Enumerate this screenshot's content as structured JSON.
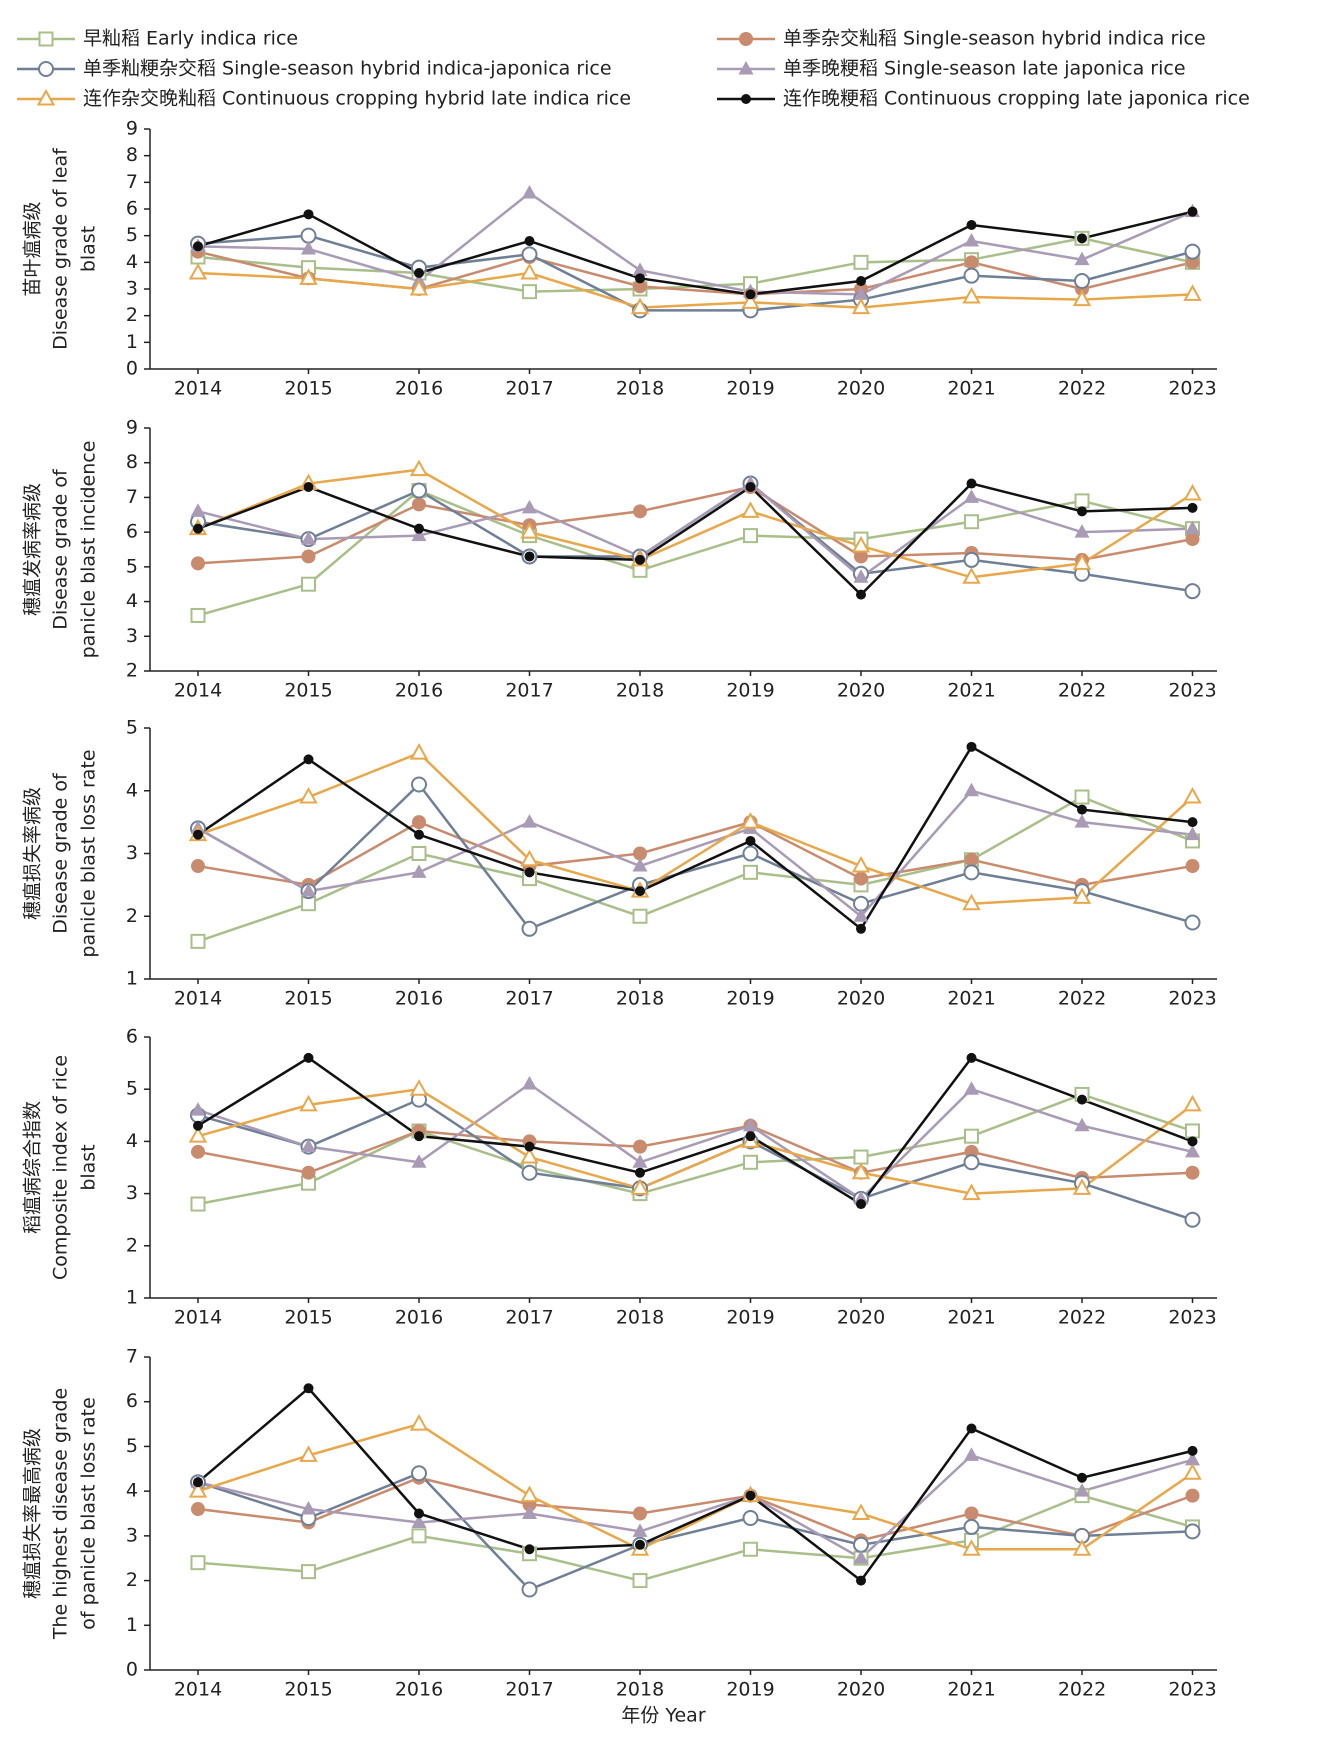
{
  "chart_data": [
    {
      "type": "line",
      "ylabel": [
        "苗叶瘟病级",
        "Disease grade of leaf",
        "blast"
      ],
      "legend": "top",
      "categories": [
        "2014",
        "2015",
        "2016",
        "2017",
        "2018",
        "2019",
        "2020",
        "2021",
        "2022",
        "2023"
      ],
      "ylim": [
        0,
        9
      ],
      "yticks": [
        0,
        1,
        2,
        3,
        4,
        5,
        6,
        7,
        8,
        9
      ],
      "series": [
        {
          "name": "早籼稻 Early indica rice",
          "color": "#a8bf8a",
          "marker": "square-open",
          "values": [
            4.2,
            3.8,
            3.6,
            2.9,
            3.0,
            3.2,
            4.0,
            4.1,
            4.9,
            4.0
          ]
        },
        {
          "name": "单季杂交籼稻 Single-season hybrid indica rice",
          "color": "#c98b6e",
          "marker": "circle-filled",
          "values": [
            4.4,
            3.4,
            3.0,
            4.2,
            3.1,
            2.8,
            3.0,
            4.0,
            3.0,
            4.0
          ]
        },
        {
          "name": "单季籼粳杂交稻 Single-season hybrid indica-japonica rice",
          "color": "#6f7f96",
          "marker": "circle-open",
          "values": [
            4.7,
            5.0,
            3.8,
            4.3,
            2.2,
            2.2,
            2.6,
            3.5,
            3.3,
            4.4
          ]
        },
        {
          "name": "单季晚粳稻 Single-season late japonica rice",
          "color": "#a99ab5",
          "marker": "triangle-filled",
          "values": [
            4.6,
            4.5,
            3.3,
            6.6,
            3.7,
            2.9,
            2.8,
            4.8,
            4.1,
            5.9
          ]
        },
        {
          "name": "连作杂交晚籼稻 Continuous cropping hybrid late indica rice",
          "color": "#e8a74a",
          "marker": "triangle-open",
          "values": [
            3.6,
            3.4,
            3.0,
            3.6,
            2.3,
            2.5,
            2.3,
            2.7,
            2.6,
            2.8
          ]
        },
        {
          "name": "连作晚粳稻 Continuous cropping late japonica rice",
          "color": "#111111",
          "marker": "dot",
          "values": [
            4.6,
            5.8,
            3.6,
            4.8,
            3.4,
            2.8,
            3.3,
            5.4,
            4.9,
            5.9
          ]
        }
      ]
    },
    {
      "type": "line",
      "ylabel": [
        "穗瘟发病率病级",
        "Disease grade of",
        "panicle blast incidence"
      ],
      "categories": [
        "2014",
        "2015",
        "2016",
        "2017",
        "2018",
        "2019",
        "2020",
        "2021",
        "2022",
        "2023"
      ],
      "ylim": [
        2,
        9
      ],
      "yticks": [
        2,
        3,
        4,
        5,
        6,
        7,
        8,
        9
      ],
      "series": [
        {
          "color": "#a8bf8a",
          "marker": "square-open",
          "values": [
            3.6,
            4.5,
            7.2,
            5.9,
            4.9,
            5.9,
            5.8,
            6.3,
            6.9,
            6.1
          ]
        },
        {
          "color": "#c98b6e",
          "marker": "circle-filled",
          "values": [
            5.1,
            5.3,
            6.8,
            6.2,
            6.6,
            7.3,
            5.3,
            5.4,
            5.2,
            5.8
          ]
        },
        {
          "color": "#6f7f96",
          "marker": "circle-open",
          "values": [
            6.3,
            5.8,
            7.2,
            5.3,
            5.3,
            7.4,
            4.8,
            5.2,
            4.8,
            4.3
          ]
        },
        {
          "color": "#a99ab5",
          "marker": "triangle-filled",
          "values": [
            6.6,
            5.8,
            5.9,
            6.7,
            5.3,
            7.4,
            4.7,
            7.0,
            6.0,
            6.1
          ]
        },
        {
          "color": "#e8a74a",
          "marker": "triangle-open",
          "values": [
            6.1,
            7.4,
            7.8,
            6.0,
            5.2,
            6.6,
            5.6,
            4.7,
            5.1,
            7.1
          ]
        },
        {
          "color": "#111111",
          "marker": "dot",
          "values": [
            6.1,
            7.3,
            6.1,
            5.3,
            5.2,
            7.3,
            4.2,
            7.4,
            6.6,
            6.7
          ]
        }
      ]
    },
    {
      "type": "line",
      "ylabel": [
        "穗瘟损失率病级",
        "Disease grade of",
        "panicle blast loss rate"
      ],
      "categories": [
        "2014",
        "2015",
        "2016",
        "2017",
        "2018",
        "2019",
        "2020",
        "2021",
        "2022",
        "2023"
      ],
      "ylim": [
        1,
        5
      ],
      "yticks": [
        1,
        2,
        3,
        4,
        5
      ],
      "series": [
        {
          "color": "#a8bf8a",
          "marker": "square-open",
          "values": [
            1.6,
            2.2,
            3.0,
            2.6,
            2.0,
            2.7,
            2.5,
            2.9,
            3.9,
            3.2
          ]
        },
        {
          "color": "#c98b6e",
          "marker": "circle-filled",
          "values": [
            2.8,
            2.5,
            3.5,
            2.8,
            3.0,
            3.5,
            2.6,
            2.9,
            2.5,
            2.8
          ]
        },
        {
          "color": "#6f7f96",
          "marker": "circle-open",
          "values": [
            3.4,
            2.4,
            4.1,
            1.8,
            2.5,
            3.0,
            2.2,
            2.7,
            2.4,
            1.9
          ]
        },
        {
          "color": "#a99ab5",
          "marker": "triangle-filled",
          "values": [
            3.4,
            2.4,
            2.7,
            3.5,
            2.8,
            3.4,
            2.0,
            4.0,
            3.5,
            3.3
          ]
        },
        {
          "color": "#e8a74a",
          "marker": "triangle-open",
          "values": [
            3.3,
            3.9,
            4.6,
            2.9,
            2.4,
            3.5,
            2.8,
            2.2,
            2.3,
            3.9
          ]
        },
        {
          "color": "#111111",
          "marker": "dot",
          "values": [
            3.3,
            4.5,
            3.3,
            2.7,
            2.4,
            3.2,
            1.8,
            4.7,
            3.7,
            3.5
          ]
        }
      ]
    },
    {
      "type": "line",
      "ylabel": [
        "稻瘟病综合指数",
        "Composite index of rice",
        "blast"
      ],
      "categories": [
        "2014",
        "2015",
        "2016",
        "2017",
        "2018",
        "2019",
        "2020",
        "2021",
        "2022",
        "2023"
      ],
      "ylim": [
        1,
        6
      ],
      "yticks": [
        1,
        2,
        3,
        4,
        5,
        6
      ],
      "series": [
        {
          "color": "#a8bf8a",
          "marker": "square-open",
          "values": [
            2.8,
            3.2,
            4.2,
            3.5,
            3.0,
            3.6,
            3.7,
            4.1,
            4.9,
            4.2
          ]
        },
        {
          "color": "#c98b6e",
          "marker": "circle-filled",
          "values": [
            3.8,
            3.4,
            4.2,
            4.0,
            3.9,
            4.3,
            3.4,
            3.8,
            3.3,
            3.4
          ]
        },
        {
          "color": "#6f7f96",
          "marker": "circle-open",
          "values": [
            4.5,
            3.9,
            4.8,
            3.4,
            3.1,
            4.0,
            2.9,
            3.6,
            3.2,
            2.5
          ]
        },
        {
          "color": "#a99ab5",
          "marker": "triangle-filled",
          "values": [
            4.6,
            3.9,
            3.6,
            5.1,
            3.6,
            4.3,
            2.9,
            5.0,
            4.3,
            3.8
          ]
        },
        {
          "color": "#e8a74a",
          "marker": "triangle-open",
          "values": [
            4.1,
            4.7,
            5.0,
            3.7,
            3.1,
            4.0,
            3.4,
            3.0,
            3.1,
            4.7
          ]
        },
        {
          "color": "#111111",
          "marker": "dot",
          "values": [
            4.3,
            5.6,
            4.1,
            3.9,
            3.4,
            4.1,
            2.8,
            5.6,
            4.8,
            4.0
          ]
        }
      ]
    },
    {
      "type": "line",
      "ylabel": [
        "穗瘟损失率最高病级",
        "The highest disease grade",
        "of panicle blast loss rate"
      ],
      "xlabel": "年份 Year",
      "categories": [
        "2014",
        "2015",
        "2016",
        "2017",
        "2018",
        "2019",
        "2020",
        "2021",
        "2022",
        "2023"
      ],
      "ylim": [
        0,
        7
      ],
      "yticks": [
        0,
        1,
        2,
        3,
        4,
        5,
        6,
        7
      ],
      "series": [
        {
          "color": "#a8bf8a",
          "marker": "square-open",
          "values": [
            2.4,
            2.2,
            3.0,
            2.6,
            2.0,
            2.7,
            2.5,
            2.9,
            3.9,
            3.2
          ]
        },
        {
          "color": "#c98b6e",
          "marker": "circle-filled",
          "values": [
            3.6,
            3.3,
            4.3,
            3.7,
            3.5,
            3.9,
            2.9,
            3.5,
            3.0,
            3.9
          ]
        },
        {
          "color": "#6f7f96",
          "marker": "circle-open",
          "values": [
            4.2,
            3.4,
            4.4,
            1.8,
            2.8,
            3.4,
            2.8,
            3.2,
            3.0,
            3.1
          ]
        },
        {
          "color": "#a99ab5",
          "marker": "triangle-filled",
          "values": [
            4.2,
            3.6,
            3.3,
            3.5,
            3.1,
            3.9,
            2.5,
            4.8,
            4.0,
            4.7
          ]
        },
        {
          "color": "#e8a74a",
          "marker": "triangle-open",
          "values": [
            4.0,
            4.8,
            5.5,
            3.9,
            2.7,
            3.9,
            3.5,
            2.7,
            2.7,
            4.4
          ]
        },
        {
          "color": "#111111",
          "marker": "dot",
          "values": [
            4.2,
            6.3,
            3.5,
            2.7,
            2.8,
            3.9,
            2.0,
            5.4,
            4.3,
            4.9
          ]
        }
      ]
    }
  ]
}
